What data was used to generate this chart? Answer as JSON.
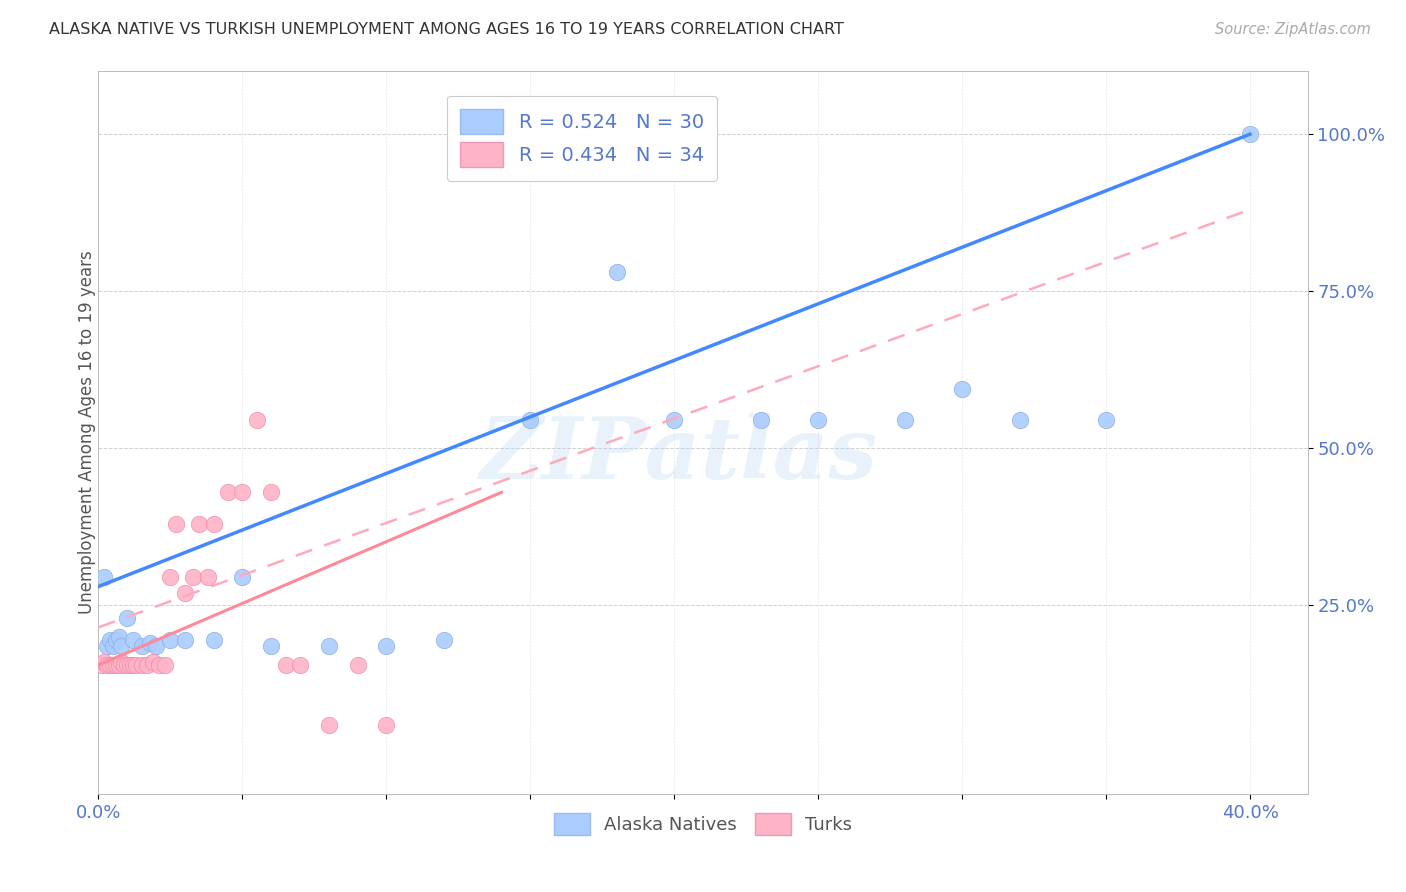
{
  "title": "ALASKA NATIVE VS TURKISH UNEMPLOYMENT AMONG AGES 16 TO 19 YEARS CORRELATION CHART",
  "source": "Source: ZipAtlas.com",
  "ylabel": "Unemployment Among Ages 16 to 19 years",
  "xlim": [
    0.0,
    0.42
  ],
  "ylim": [
    -0.05,
    1.1
  ],
  "xtick_pos": [
    0.0,
    0.05,
    0.1,
    0.15,
    0.2,
    0.25,
    0.3,
    0.35,
    0.4
  ],
  "xticklabels": [
    "0.0%",
    "",
    "",
    "",
    "",
    "",
    "",
    "",
    "40.0%"
  ],
  "ytick_positions": [
    0.25,
    0.5,
    0.75,
    1.0
  ],
  "ytick_labels": [
    "25.0%",
    "50.0%",
    "75.0%",
    "100.0%"
  ],
  "blue_scatter_color": "#AACCFF",
  "pink_scatter_color": "#FFB3C6",
  "blue_line_color": "#4488FF",
  "pink_solid_color": "#FF8899",
  "pink_dash_color": "#FFAABC",
  "tick_color": "#5577CC",
  "background_color": "#FFFFFF",
  "watermark": "ZIPatlas",
  "alaska_x": [
    0.002,
    0.003,
    0.004,
    0.005,
    0.006,
    0.007,
    0.008,
    0.01,
    0.012,
    0.015,
    0.018,
    0.02,
    0.025,
    0.03,
    0.04,
    0.05,
    0.06,
    0.08,
    0.1,
    0.12,
    0.15,
    0.18,
    0.2,
    0.23,
    0.25,
    0.28,
    0.3,
    0.32,
    0.35,
    0.4
  ],
  "alaska_y": [
    0.295,
    0.185,
    0.195,
    0.185,
    0.195,
    0.2,
    0.185,
    0.23,
    0.195,
    0.185,
    0.19,
    0.185,
    0.195,
    0.195,
    0.195,
    0.295,
    0.185,
    0.185,
    0.185,
    0.195,
    0.545,
    0.78,
    0.545,
    0.545,
    0.545,
    0.545,
    0.595,
    0.545,
    0.545,
    1.0
  ],
  "turk_x": [
    0.001,
    0.002,
    0.003,
    0.004,
    0.005,
    0.006,
    0.007,
    0.008,
    0.009,
    0.01,
    0.011,
    0.012,
    0.013,
    0.015,
    0.017,
    0.019,
    0.021,
    0.023,
    0.025,
    0.027,
    0.03,
    0.033,
    0.035,
    0.038,
    0.04,
    0.045,
    0.05,
    0.055,
    0.06,
    0.065,
    0.07,
    0.08,
    0.09,
    0.1
  ],
  "turk_y": [
    0.155,
    0.16,
    0.155,
    0.155,
    0.155,
    0.155,
    0.155,
    0.16,
    0.155,
    0.155,
    0.155,
    0.155,
    0.155,
    0.155,
    0.155,
    0.16,
    0.155,
    0.155,
    0.295,
    0.38,
    0.27,
    0.295,
    0.38,
    0.295,
    0.38,
    0.43,
    0.43,
    0.545,
    0.43,
    0.155,
    0.155,
    0.06,
    0.155,
    0.06
  ],
  "blue_line": {
    "x0": 0.0,
    "y0": 0.28,
    "x1": 0.4,
    "y1": 1.0
  },
  "pink_solid_line": {
    "x0": 0.0,
    "y0": 0.155,
    "x1": 0.14,
    "y1": 0.43
  },
  "pink_dash_line": {
    "x0": 0.0,
    "y0": 0.215,
    "x1": 0.4,
    "y1": 0.88
  }
}
